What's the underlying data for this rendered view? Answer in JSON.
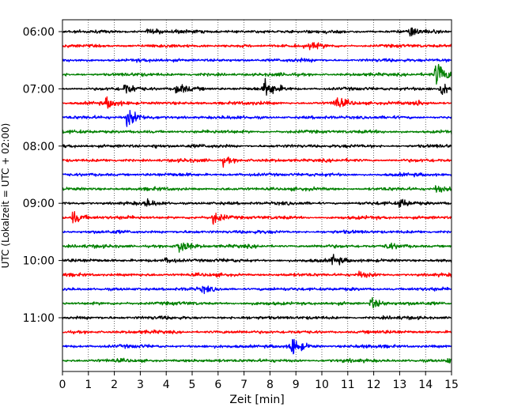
{
  "chart_data": {
    "type": "line",
    "chart_kind": "helicorder",
    "xlabel": "Zeit  [min]",
    "ylabel": "UTC (Lokalzeit = UTC + 02:00)",
    "xlim": [
      0,
      15
    ],
    "x_ticks": [
      0,
      1,
      2,
      3,
      4,
      5,
      6,
      7,
      8,
      9,
      10,
      11,
      12,
      13,
      14,
      15
    ],
    "y_tick_labels": [
      "06:00",
      "07:00",
      "08:00",
      "09:00",
      "10:00",
      "11:00"
    ],
    "grid": "vertical dotted at each minute",
    "trace_colors": [
      "#000000",
      "#ff0000",
      "#0000ff",
      "#008000"
    ],
    "trace_start_times": [
      "06:00",
      "06:15",
      "06:30",
      "06:45",
      "07:00",
      "07:15",
      "07:30",
      "07:45",
      "08:00",
      "08:15",
      "08:30",
      "08:45",
      "09:00",
      "09:15",
      "09:30",
      "09:45",
      "10:00",
      "10:15",
      "10:30",
      "10:45",
      "11:00",
      "11:15",
      "11:30",
      "11:45"
    ],
    "events": [
      {
        "trace": 0,
        "t": 13.4,
        "amp": 0.35
      },
      {
        "trace": 0,
        "t": 3.3,
        "amp": 0.2
      },
      {
        "trace": 1,
        "t": 9.5,
        "amp": 0.2
      },
      {
        "trace": 3,
        "t": 14.4,
        "amp": 1.0
      },
      {
        "trace": 4,
        "t": 2.4,
        "amp": 0.45
      },
      {
        "trace": 4,
        "t": 4.4,
        "amp": 0.45
      },
      {
        "trace": 4,
        "t": 7.8,
        "amp": 0.7
      },
      {
        "trace": 4,
        "t": 14.6,
        "amp": 0.55
      },
      {
        "trace": 5,
        "t": 1.7,
        "amp": 0.4
      },
      {
        "trace": 5,
        "t": 10.5,
        "amp": 0.5
      },
      {
        "trace": 5,
        "t": 13.6,
        "amp": 0.2
      },
      {
        "trace": 6,
        "t": 2.5,
        "amp": 0.7
      },
      {
        "trace": 8,
        "t": 3.5,
        "amp": 0.15
      },
      {
        "trace": 9,
        "t": 6.2,
        "amp": 0.3
      },
      {
        "trace": 11,
        "t": 14.4,
        "amp": 0.25
      },
      {
        "trace": 12,
        "t": 3.2,
        "amp": 0.25
      },
      {
        "trace": 12,
        "t": 13.0,
        "amp": 0.35
      },
      {
        "trace": 13,
        "t": 0.4,
        "amp": 0.5
      },
      {
        "trace": 13,
        "t": 5.8,
        "amp": 0.45
      },
      {
        "trace": 15,
        "t": 4.5,
        "amp": 0.55
      },
      {
        "trace": 15,
        "t": 12.5,
        "amp": 0.25
      },
      {
        "trace": 16,
        "t": 10.4,
        "amp": 0.4
      },
      {
        "trace": 16,
        "t": 4.0,
        "amp": 0.2
      },
      {
        "trace": 17,
        "t": 11.4,
        "amp": 0.2
      },
      {
        "trace": 18,
        "t": 5.4,
        "amp": 0.2
      },
      {
        "trace": 19,
        "t": 11.9,
        "amp": 0.45
      },
      {
        "trace": 22,
        "t": 8.8,
        "amp": 0.8
      },
      {
        "trace": 23,
        "t": 14.8,
        "amp": 0.2
      }
    ],
    "colors": {
      "background": "#ffffff",
      "axes": "#000000",
      "grid": "#000000"
    }
  }
}
